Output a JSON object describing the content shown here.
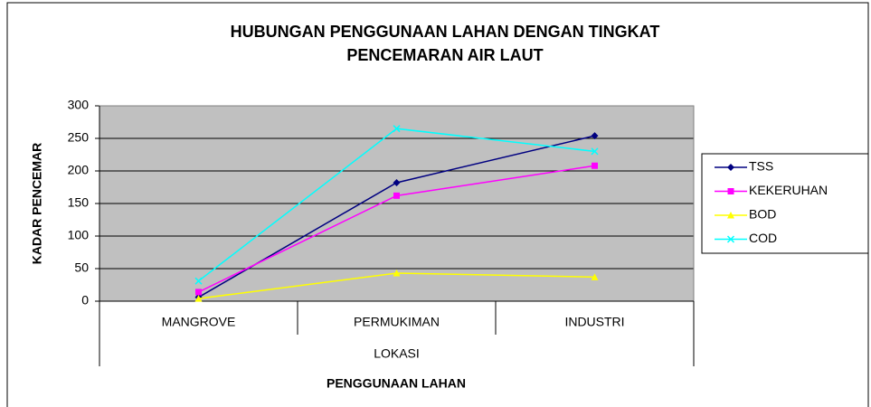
{
  "chart_data": {
    "type": "line",
    "title": [
      "HUBUNGAN PENGGUNAAN LAHAN DENGAN TINGKAT",
      "PENCEMARAN AIR LAUT"
    ],
    "categories": [
      "MANGROVE",
      "PERMUKIMAN",
      "INDUSTRI"
    ],
    "category_group": "LOKASI",
    "x_label": "PENGGUNAAN LAHAN",
    "y_label": "KADAR PENCEMAR",
    "series": [
      {
        "name": "TSS",
        "color": "#000080",
        "marker": "diamond",
        "values": [
          6,
          182,
          254
        ]
      },
      {
        "name": "KEKERUHAN",
        "color": "#ff00ff",
        "marker": "square",
        "values": [
          14,
          162,
          208
        ]
      },
      {
        "name": "BOD",
        "color": "#ffff00",
        "marker": "triangle",
        "values": [
          4,
          43,
          37
        ]
      },
      {
        "name": "COD",
        "color": "#00ffff",
        "marker": "x",
        "values": [
          31,
          265,
          230
        ]
      }
    ],
    "ylim": [
      0,
      300
    ],
    "yticks": [
      0,
      50,
      100,
      150,
      200,
      250,
      300
    ],
    "grid": true,
    "legend": "right"
  }
}
